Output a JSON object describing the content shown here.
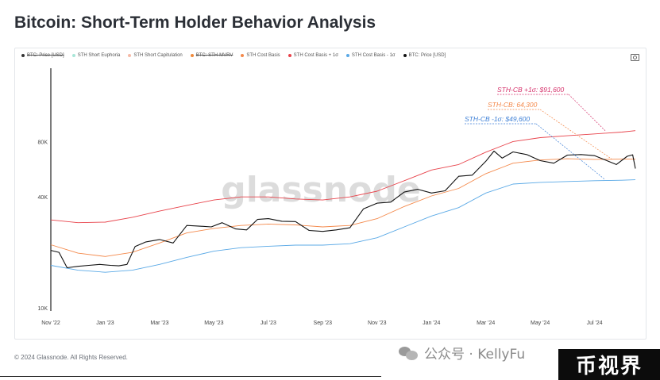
{
  "title": "Bitcoin: Short-Term Holder Behavior Analysis",
  "legend": [
    {
      "label": "BTC: Price [USD]",
      "color": "#333333",
      "struck": true
    },
    {
      "label": "STH Short Euphoria",
      "color": "#a8e6d8",
      "struck": false
    },
    {
      "label": "STH Short Capitulation",
      "color": "#f6b9a6",
      "struck": false
    },
    {
      "label": "BTC: STH-MVRV",
      "color": "#f08a3c",
      "struck": true
    },
    {
      "label": "STH Cost Basis",
      "color": "#f4894b",
      "struck": false
    },
    {
      "label": "STH Cost Basis + 1σ",
      "color": "#e8434b",
      "struck": false
    },
    {
      "label": "STH Cost Basis - 1σ",
      "color": "#5aa9e6",
      "struck": false
    },
    {
      "label": "BTC: Price [USD]",
      "color": "#111111",
      "struck": false
    }
  ],
  "watermark": "glassnode",
  "footer": "© 2024 Glassnode. All Rights Reserved.",
  "wechat_text": "公众号 · KellyFu",
  "badge": "币视界",
  "chart_data": {
    "type": "line",
    "y_scale": "log",
    "ylim": [
      10000,
      200000
    ],
    "y_ticks": [
      {
        "value": 10000,
        "label": "10K"
      },
      {
        "value": 40000,
        "label": "40K"
      },
      {
        "value": 80000,
        "label": "80K"
      }
    ],
    "x_ticks": [
      "Nov '22",
      "Jan '23",
      "Mar '23",
      "May '23",
      "Jul '23",
      "Sep '23",
      "Nov '23",
      "Jan '24",
      "Mar '24",
      "May '24",
      "Jul '24"
    ],
    "x_tick_positions": [
      0,
      2,
      4,
      6,
      8,
      10,
      12,
      14,
      16,
      18,
      20
    ],
    "x_range": [
      0,
      21.5
    ],
    "series": [
      {
        "name": "STH Cost Basis + 1σ",
        "color": "#e8434b",
        "x": [
          0,
          1,
          2,
          3,
          4,
          5,
          6,
          7,
          8,
          9,
          10,
          11,
          12,
          13,
          14,
          15,
          16,
          17,
          18,
          19,
          20,
          21,
          21.5
        ],
        "y": [
          30000,
          29000,
          29200,
          31000,
          33500,
          36000,
          38500,
          40000,
          40000,
          39000,
          38500,
          40000,
          43000,
          49000,
          56000,
          60000,
          70000,
          80000,
          84000,
          86000,
          88000,
          90000,
          91600
        ]
      },
      {
        "name": "STH Cost Basis",
        "color": "#f4894b",
        "x": [
          0,
          1,
          2,
          3,
          4,
          5,
          6,
          7,
          8,
          9,
          10,
          11,
          12,
          13,
          14,
          15,
          16,
          17,
          18,
          19,
          20,
          21,
          21.5
        ],
        "y": [
          22000,
          19800,
          19000,
          20000,
          22500,
          25500,
          27000,
          28000,
          28500,
          28200,
          27500,
          28000,
          30500,
          35500,
          40500,
          44500,
          53500,
          61000,
          63500,
          64500,
          64000,
          64200,
          64300
        ]
      },
      {
        "name": "STH Cost Basis - 1σ",
        "color": "#5aa9e6",
        "x": [
          0,
          1,
          2,
          3,
          4,
          5,
          6,
          7,
          8,
          9,
          10,
          11,
          12,
          13,
          14,
          15,
          16,
          17,
          18,
          19,
          20,
          21,
          21.5
        ],
        "y": [
          17000,
          16000,
          15600,
          16000,
          17200,
          18800,
          20300,
          21200,
          21600,
          21900,
          21900,
          22300,
          24000,
          27500,
          31500,
          35000,
          42000,
          47000,
          48000,
          48500,
          49000,
          49300,
          49600
        ]
      },
      {
        "name": "BTC: Price [USD]",
        "color": "#111111",
        "x": [
          0,
          0.3,
          0.6,
          1.0,
          1.4,
          1.8,
          2.2,
          2.5,
          2.8,
          3.1,
          3.5,
          4.0,
          4.5,
          5.0,
          5.4,
          5.9,
          6.3,
          6.8,
          7.2,
          7.6,
          8.0,
          8.5,
          9.0,
          9.5,
          10.0,
          10.5,
          11.0,
          11.5,
          12.0,
          12.5,
          13.0,
          13.5,
          14.0,
          14.5,
          15.0,
          15.5,
          16.0,
          16.3,
          16.6,
          17.0,
          17.5,
          18.0,
          18.5,
          19.0,
          19.5,
          20.0,
          20.4,
          20.8,
          21.2,
          21.4,
          21.5
        ],
        "y": [
          20500,
          20000,
          16500,
          16800,
          17000,
          17200,
          17000,
          16900,
          17200,
          21500,
          22800,
          23500,
          22500,
          28000,
          27800,
          27500,
          29000,
          26800,
          26500,
          30200,
          30500,
          29500,
          29400,
          26300,
          26000,
          26500,
          27200,
          34500,
          37000,
          37500,
          42500,
          44000,
          42000,
          43200,
          51800,
          52500,
          62500,
          71000,
          65000,
          70200,
          68000,
          63000,
          61000,
          67500,
          68000,
          67000,
          63500,
          60000,
          66500,
          67800,
          57000
        ]
      }
    ],
    "annotations": [
      {
        "text": "STH-CB +1σ: $91,600",
        "color": "#d6336c",
        "series": "STH Cost Basis + 1σ"
      },
      {
        "text": "STH-CB: 64,300",
        "color": "#f4894b",
        "series": "STH Cost Basis"
      },
      {
        "text": "STH-CB -1σ: $49,600",
        "color": "#3d7fd6",
        "series": "STH Cost Basis - 1σ"
      }
    ]
  }
}
